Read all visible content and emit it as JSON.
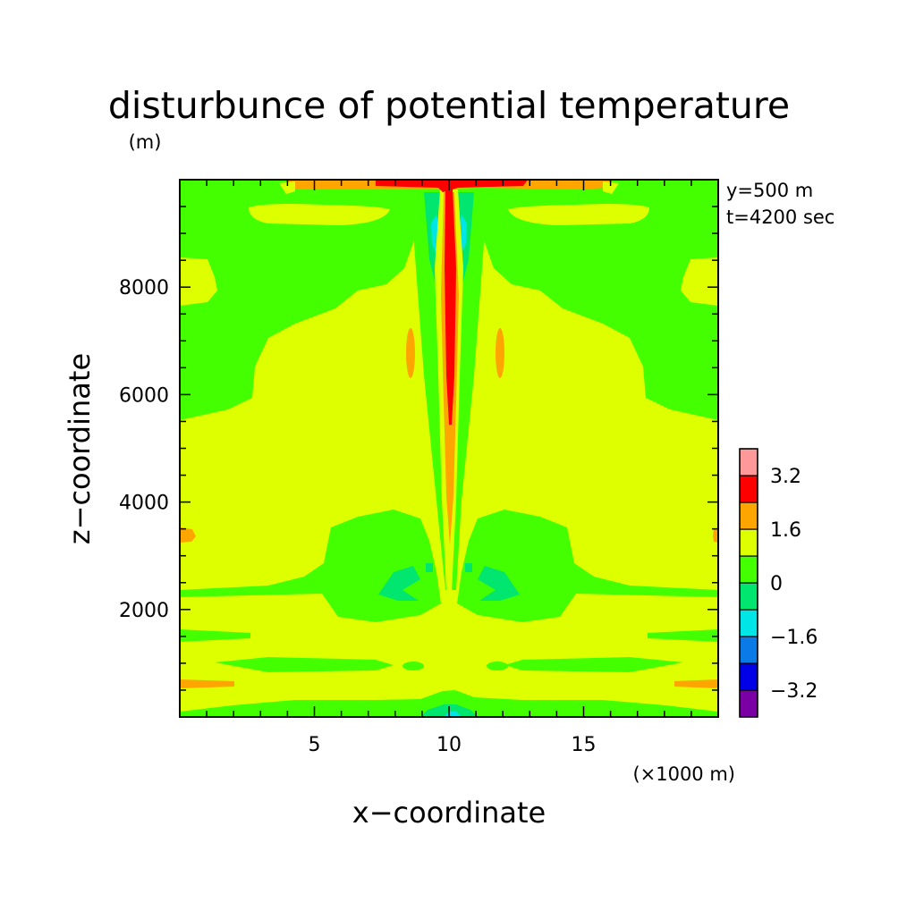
{
  "chart_data": {
    "type": "heatmap",
    "title": "disturbunce of potential temperature",
    "ylabel": "z−coordinate",
    "y_unit": "(m)",
    "xlabel": "x−coordinate",
    "x_unit": "(×1000 m)",
    "info": [
      "y=500 m",
      "t=4200 sec"
    ],
    "xlim": [
      0,
      20
    ],
    "ylim": [
      0,
      10000
    ],
    "x_ticks": [
      5,
      10,
      15
    ],
    "y_ticks": [
      2000,
      4000,
      6000,
      8000
    ],
    "colorbar": {
      "levels": [
        -4.0,
        -3.2,
        -2.4,
        -1.6,
        -0.8,
        0,
        0.8,
        1.6,
        2.4,
        3.2,
        4.0
      ],
      "labels": [
        "3.2",
        "1.6",
        "0",
        "−1.6",
        "−3.2"
      ],
      "label_values": [
        3.2,
        1.6,
        0,
        -1.6,
        -3.2
      ],
      "colors": [
        "#7a00a6",
        "#0000e6",
        "#0a7ae6",
        "#00e6e6",
        "#00e66e",
        "#44ff00",
        "#ddff00",
        "#ffa500",
        "#ff0000",
        "#ff9999"
      ]
    }
  }
}
